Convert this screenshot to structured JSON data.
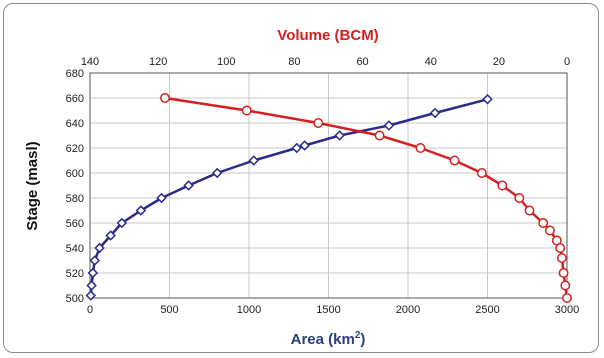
{
  "chart_data": {
    "type": "line",
    "title": "",
    "ylabel": "Stage (masl)",
    "ylim": [
      500,
      680
    ],
    "yticks": [
      500,
      520,
      540,
      560,
      580,
      600,
      620,
      640,
      660,
      680
    ],
    "xlabel_top": "Volume (BCM)",
    "xlim_top": [
      140,
      0
    ],
    "xticks_top": [
      140,
      120,
      100,
      80,
      60,
      40,
      20,
      0
    ],
    "xlabel_bottom_prefix": "Area (km",
    "xlabel_bottom_sup": "2",
    "xlabel_bottom_suffix": ")",
    "xlim_bottom": [
      0,
      3000
    ],
    "xticks_bottom": [
      0,
      500,
      1000,
      1500,
      2000,
      2500,
      3000
    ],
    "grid": true,
    "series": [
      {
        "axis": "bottom",
        "color": "#2b2b8c",
        "marker": "diamond",
        "points": [
          [
            5,
            502
          ],
          [
            10,
            510
          ],
          [
            18,
            520
          ],
          [
            30,
            530
          ],
          [
            60,
            540
          ],
          [
            130,
            550
          ],
          [
            200,
            560
          ],
          [
            320,
            570
          ],
          [
            450,
            580
          ],
          [
            620,
            590
          ],
          [
            800,
            600
          ],
          [
            1030,
            610
          ],
          [
            1300,
            620
          ],
          [
            1350,
            622
          ],
          [
            1570,
            630
          ],
          [
            1880,
            638
          ],
          [
            2170,
            648
          ],
          [
            2500,
            659
          ]
        ]
      },
      {
        "axis": "top",
        "color": "#d42020",
        "marker": "circle",
        "points": [
          [
            118,
            660
          ],
          [
            94,
            650
          ],
          [
            73,
            640
          ],
          [
            55,
            630
          ],
          [
            43,
            620
          ],
          [
            33,
            610
          ],
          [
            25,
            600
          ],
          [
            19,
            590
          ],
          [
            14,
            580
          ],
          [
            11,
            570
          ],
          [
            7,
            560
          ],
          [
            5,
            554
          ],
          [
            3,
            546
          ],
          [
            2,
            540
          ],
          [
            1.5,
            532
          ],
          [
            1,
            520
          ],
          [
            0.5,
            510
          ],
          [
            0,
            500
          ]
        ]
      }
    ]
  }
}
